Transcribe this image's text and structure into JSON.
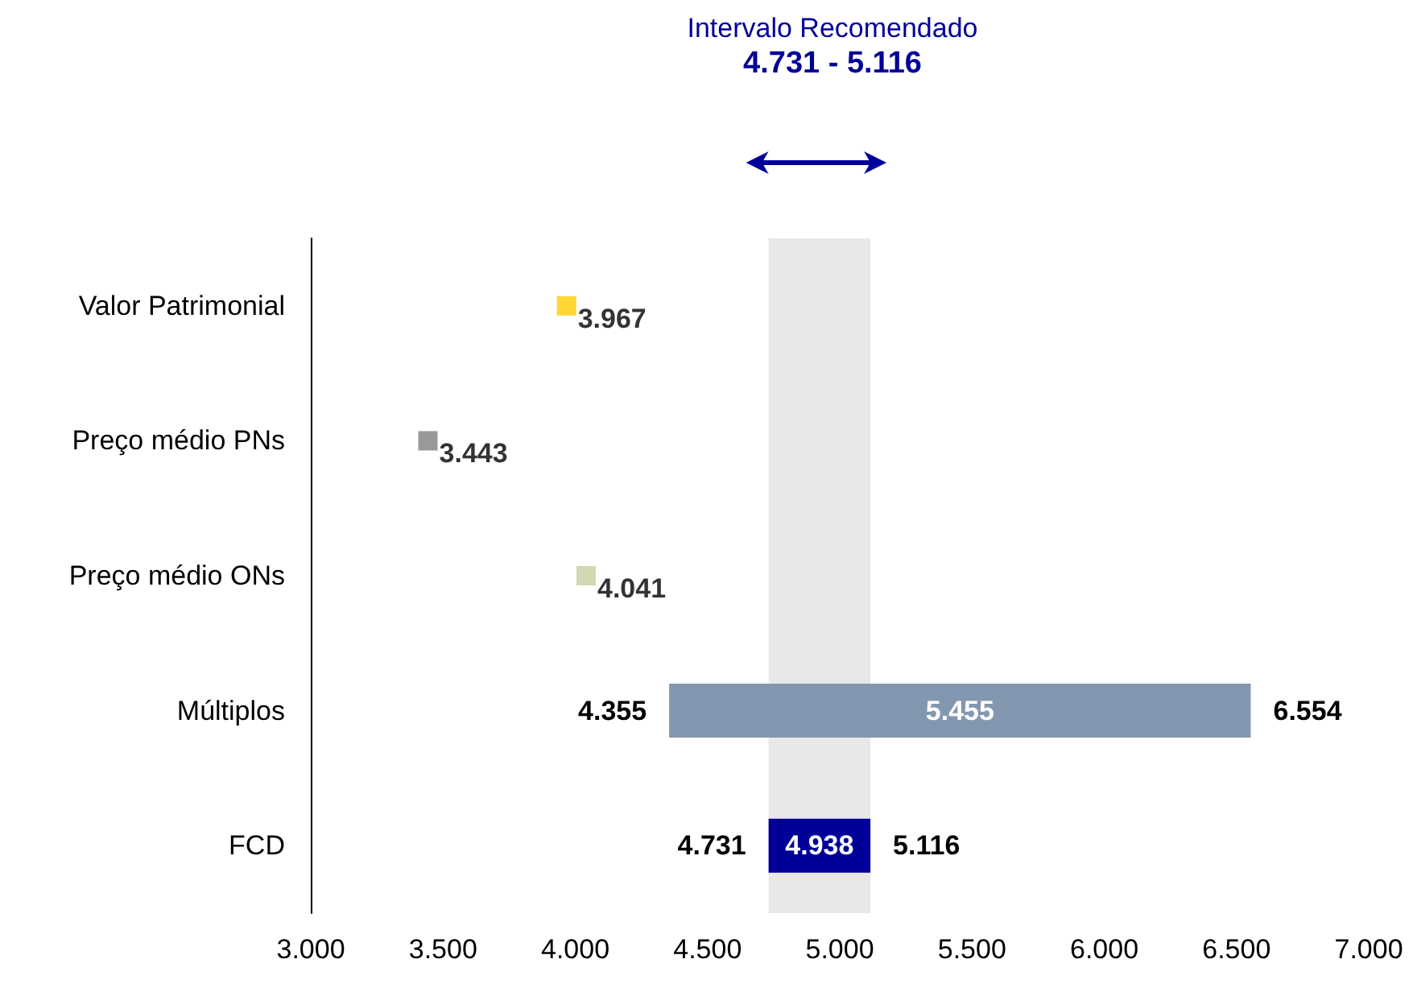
{
  "chart_data": {
    "type": "bar",
    "orientation": "horizontal",
    "title": "Intervalo Recomendado",
    "subtitle": "4.731 - 5.116",
    "categories": [
      "Valor Patrimonial",
      "Preço médio PNs",
      "Preço médio ONs",
      "Múltiplos",
      "FCD"
    ],
    "series": [
      {
        "values": [
          null,
          null,
          null,
          2.199,
          0.385
        ],
        "base": [
          null,
          null,
          null,
          4.355,
          4.731
        ],
        "colors": [
          null,
          null,
          null,
          "#8497b0",
          "#000099"
        ]
      },
      {
        "type": "scatter",
        "marker": "square",
        "values": [
          3.967,
          3.443,
          4.041,
          null,
          null
        ],
        "colors": [
          "#ffcc00",
          "#808080",
          "#c4d09b",
          null,
          null
        ],
        "value_labels": [
          "3.967",
          "3.443",
          "4.041",
          null,
          null
        ]
      }
    ],
    "xlim": [
      3,
      7
    ],
    "xticks": [
      {
        "value": 3,
        "label": "3.000"
      },
      {
        "value": 3.5,
        "label": "3.500"
      },
      {
        "value": 4,
        "label": "4.000"
      },
      {
        "value": 4.5,
        "label": "4.500"
      },
      {
        "value": 5,
        "label": "5.000"
      },
      {
        "value": 5.5,
        "label": "5.500"
      },
      {
        "value": 6,
        "label": "6.000"
      },
      {
        "value": 6.5,
        "label": "6.500"
      },
      {
        "value": 7,
        "label": "7.000"
      }
    ],
    "bands": [
      {
        "axis": "x",
        "from": 4.731,
        "to": 5.116,
        "color": "#e8e8e8"
      }
    ],
    "annotations": [
      {
        "text": "4.355",
        "x": 4.355,
        "y": "Múltiplos"
      },
      "5.455",
      {
        "text": "6.554",
        "x": 6.554,
        "y": "Múltiplos"
      },
      "4.938",
      {
        "text": "4.731",
        "x": 4.731,
        "y": "FCD"
      },
      {
        "text": "5.116",
        "x": 5.116,
        "y": "FCD"
      }
    ],
    "grid": false
  }
}
